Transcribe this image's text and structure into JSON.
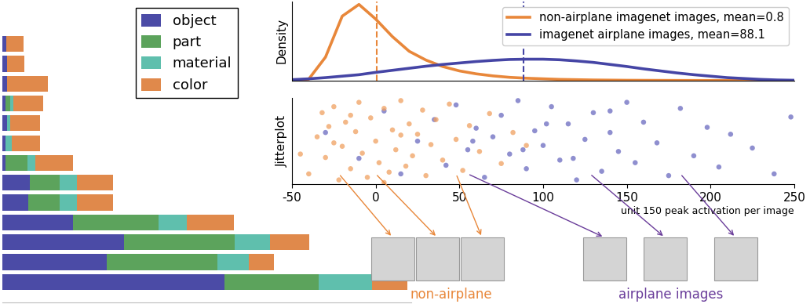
{
  "chart_data": [
    {
      "type": "bar",
      "orientation": "horizontal",
      "stacked": true,
      "legend": "upper center",
      "tick_labels": false,
      "categories": [
        null,
        null,
        null,
        null,
        null,
        null,
        null,
        null,
        null,
        null,
        null,
        null,
        null
      ],
      "xlim": [
        0,
        520
      ],
      "xticks": [],
      "series": [
        {
          "name": "object",
          "color": "#4b4ba6",
          "values": [
            5,
            6,
            6,
            4,
            6,
            4,
            4,
            35,
            33,
            90,
            155,
            133,
            282
          ]
        },
        {
          "name": "part",
          "color": "#5ca35c",
          "values": [
            0,
            0,
            0,
            6,
            0,
            0,
            28,
            38,
            40,
            108,
            140,
            140,
            120
          ]
        },
        {
          "name": "material",
          "color": "#5fbfad",
          "values": [
            0,
            0,
            0,
            4,
            4,
            8,
            10,
            22,
            22,
            36,
            45,
            40,
            68
          ]
        },
        {
          "name": "color",
          "color": "#e0894b",
          "values": [
            22,
            22,
            52,
            38,
            38,
            36,
            48,
            46,
            46,
            60,
            50,
            32,
            45
          ]
        }
      ]
    },
    {
      "type": "line",
      "ylabel": "Density",
      "legend": "upper right",
      "tick_labels": false,
      "xlim": [
        -50,
        250
      ],
      "xticks": [],
      "ylim": [
        0,
        0.027
      ],
      "yticks": [],
      "x": [
        -50,
        -40,
        -30,
        -20,
        -10,
        0,
        10,
        20,
        30,
        40,
        50,
        60,
        70,
        80,
        90,
        100,
        110,
        120,
        130,
        140,
        150,
        160,
        170,
        180,
        190,
        200,
        210,
        220,
        230,
        240,
        250
      ],
      "series": [
        {
          "name": "non-airplane imagenet images, mean=0.8",
          "color": "#e8873a",
          "mean": 0.8,
          "values": [
            0,
            0.0005,
            0.008,
            0.022,
            0.026,
            0.021,
            0.015,
            0.01,
            0.007,
            0.0048,
            0.0033,
            0.0023,
            0.0016,
            0.0011,
            0.0008,
            0.0006,
            0.0004,
            0.0003,
            0.0002,
            0.00015,
            0.0001,
            8e-05,
            6e-05,
            4e-05,
            3e-05,
            2e-05,
            1e-05,
            0,
            0,
            0,
            0
          ]
        },
        {
          "name": "imagenet airplane images, mean=88.1",
          "color": "#4545a5",
          "mean": 88.1,
          "values": [
            0.0003,
            0.0006,
            0.001,
            0.0015,
            0.002,
            0.0028,
            0.0035,
            0.0042,
            0.0049,
            0.0055,
            0.006,
            0.0065,
            0.0069,
            0.0072,
            0.0073,
            0.0073,
            0.0071,
            0.0067,
            0.0062,
            0.0055,
            0.0048,
            0.004,
            0.0033,
            0.0026,
            0.002,
            0.0015,
            0.001,
            0.0007,
            0.0004,
            0.0002,
            0.0001
          ]
        }
      ]
    },
    {
      "type": "scatter",
      "ylabel": "Jitterplot",
      "xlabel": "unit 150 peak activation per image",
      "tick_labels": "x",
      "xlim": [
        -50,
        250
      ],
      "xticks": [
        -50,
        0,
        50,
        100,
        150,
        200,
        250
      ],
      "ylim": [
        0,
        1
      ],
      "yticks": [],
      "series": [
        {
          "color": "#6a6ac0",
          "x": [
            -30,
            -10,
            5,
            15,
            25,
            35,
            42,
            48,
            55,
            60,
            65,
            70,
            75,
            80,
            85,
            90,
            95,
            100,
            105,
            110,
            115,
            120,
            125,
            130,
            135,
            140,
            145,
            150,
            155,
            160,
            168,
            175,
            182,
            190,
            198,
            205,
            212,
            225,
            238,
            248,
            88,
            102,
            118,
            58,
            140
          ],
          "y": [
            0.6,
            0.3,
            0.85,
            0.12,
            0.5,
            0.75,
            0.22,
            0.92,
            0.4,
            0.65,
            0.08,
            0.55,
            0.8,
            0.35,
            0.97,
            0.18,
            0.62,
            0.45,
            0.9,
            0.28,
            0.7,
            0.05,
            0.52,
            0.83,
            0.15,
            0.6,
            0.38,
            0.95,
            0.25,
            0.72,
            0.48,
            0.1,
            0.88,
            0.33,
            0.66,
            0.2,
            0.58,
            0.42,
            0.12,
            0.78,
            0.4,
            0.7,
            0.3,
            0.5,
            0.85
          ]
        },
        {
          "color": "#f0a060",
          "x": [
            -40,
            -35,
            -32,
            -30,
            -28,
            -25,
            -22,
            -20,
            -18,
            -15,
            -12,
            -10,
            -8,
            -5,
            -3,
            0,
            2,
            5,
            8,
            10,
            12,
            15,
            18,
            20,
            22,
            25,
            28,
            30,
            33,
            36,
            40,
            44,
            48,
            52,
            56,
            62,
            68,
            75,
            82,
            90,
            -45,
            -15,
            5,
            15,
            -25
          ],
          "y": [
            0.12,
            0.55,
            0.83,
            0.31,
            0.67,
            0.9,
            0.05,
            0.44,
            0.72,
            0.18,
            0.61,
            0.95,
            0.36,
            0.08,
            0.77,
            0.5,
            0.25,
            0.88,
            0.14,
            0.63,
            0.4,
            0.97,
            0.21,
            0.7,
            0.33,
            0.58,
            0.86,
            0.1,
            0.46,
            0.75,
            0.28,
            0.93,
            0.52,
            0.16,
            0.68,
            0.38,
            0.82,
            0.24,
            0.6,
            0.45,
            0.35,
            0.8,
            0.02,
            0.57,
            0.48
          ]
        }
      ],
      "annotations": [
        {
          "text": "non-airplane",
          "color": "#e8873a",
          "example_x": [
            -22,
            0,
            48
          ]
        },
        {
          "text": "airplane images",
          "color": "#6a3d9a",
          "example_x": [
            55,
            128,
            182
          ]
        }
      ]
    }
  ]
}
